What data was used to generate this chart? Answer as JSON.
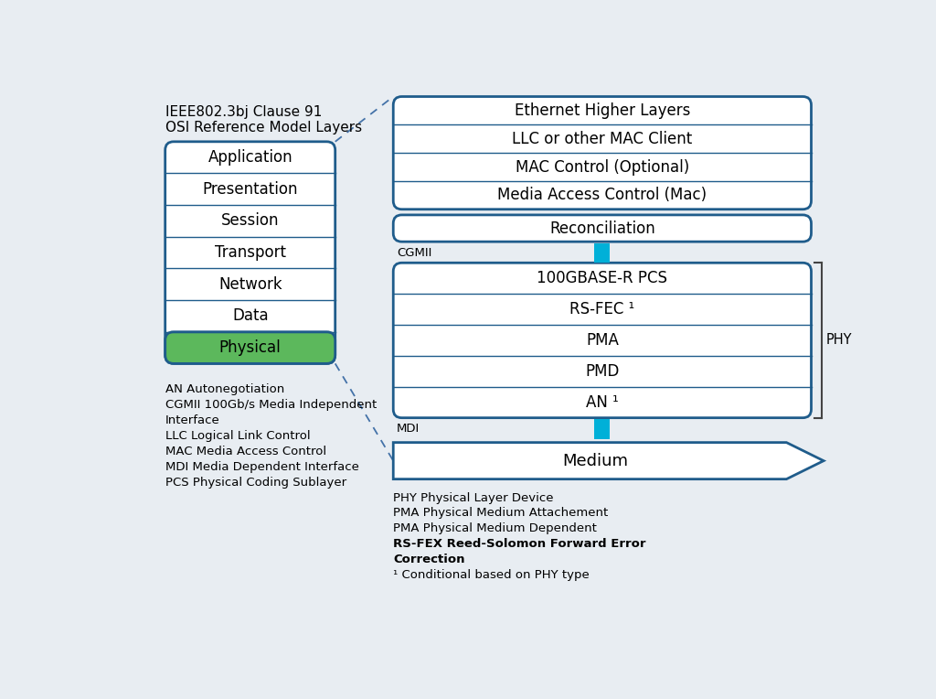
{
  "bg_color": "#e8edf2",
  "box_edge_color": "#1f5c8b",
  "box_fill_white": "#ffffff",
  "box_fill_green": "#5cb85c",
  "cyan_color": "#00b0d8",
  "title_text1": "IEEE802.3bj Clause 91",
  "title_text2": "OSI Reference Model Layers",
  "osi_layers": [
    "Application",
    "Presentation",
    "Session",
    "Transport",
    "Network",
    "Data",
    "Physical"
  ],
  "right_top_layers": [
    "Ethernet Higher Layers",
    "LLC or other MAC Client",
    "MAC Control (Optional)",
    "Media Access Control (Mac)"
  ],
  "reconciliation_label": "Reconciliation",
  "cgmii_label": "CGMII",
  "phy_inner_layers": [
    "100GBASE-R PCS",
    "RS-FEC ¹",
    "PMA",
    "PMD",
    "AN ¹"
  ],
  "mdi_label": "MDI",
  "phy_label": "PHY",
  "medium_label": "Medium",
  "left_ann_lines": [
    "AN Autonegotiation",
    "CGMII 100Gb/s Media Independent",
    "Interface",
    "LLC Logical Link Control",
    "MAC Media Access Control",
    "MDI Media Dependent Interface",
    "PCS Physical Coding Sublayer"
  ],
  "right_ann_lines": [
    [
      "PHY Physical Layer Device",
      false
    ],
    [
      "PMA Physical Medium Attachement",
      false
    ],
    [
      "PMA Physical Medium Dependent",
      false
    ],
    [
      "RS-FEX Reed-Solomon Forward Error",
      true
    ],
    [
      "Correction",
      true
    ],
    [
      "¹ Conditional based on PHY type",
      false
    ]
  ]
}
